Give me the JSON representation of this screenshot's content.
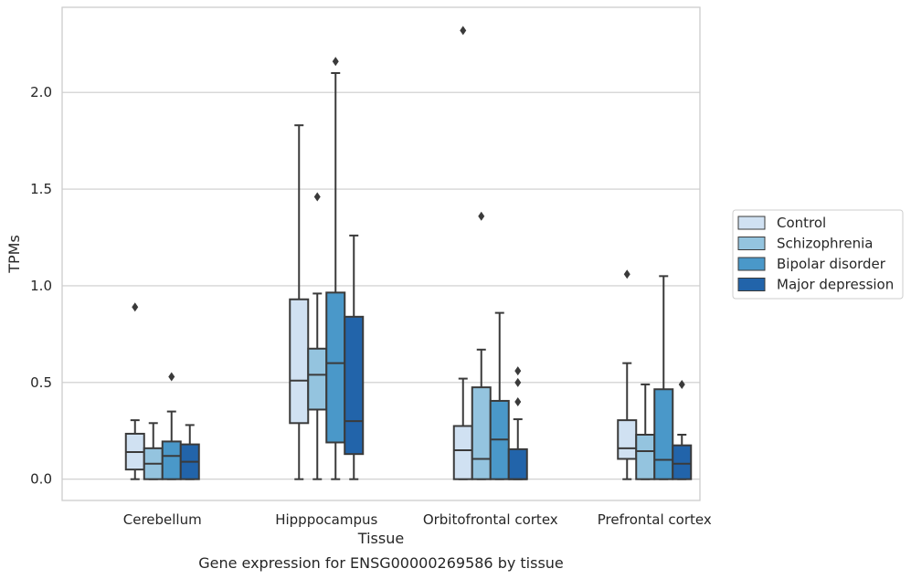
{
  "chart_data": {
    "type": "box",
    "caption": "Gene expression for ENSG00000269586 by tissue",
    "xlabel": "Tissue",
    "ylabel": "TPMs",
    "ylim": [
      -0.11,
      2.44
    ],
    "yticks": [
      0.0,
      0.5,
      1.0,
      1.5,
      2.0
    ],
    "ytick_labels": [
      "0.0",
      "0.5",
      "1.0",
      "1.5",
      "2.0"
    ],
    "grid": "horizontal",
    "legend_position": "right",
    "categories": [
      "Cerebellum",
      "Hipppocampus",
      "Orbitofrontal cortex",
      "Prefrontal cortex"
    ],
    "series": [
      {
        "name": "Control",
        "color": "#d0e1f2",
        "boxes": [
          {
            "whislo": 0.0,
            "q1": 0.05,
            "med": 0.14,
            "q3": 0.235,
            "whishi": 0.305,
            "fliers": [
              0.89
            ]
          },
          {
            "whislo": 0.0,
            "q1": 0.29,
            "med": 0.51,
            "q3": 0.93,
            "whishi": 1.83,
            "fliers": []
          },
          {
            "whislo": 0.0,
            "q1": 0.0,
            "med": 0.15,
            "q3": 0.275,
            "whishi": 0.52,
            "fliers": [
              2.32
            ]
          },
          {
            "whislo": 0.0,
            "q1": 0.105,
            "med": 0.16,
            "q3": 0.305,
            "whishi": 0.6,
            "fliers": [
              1.06
            ]
          }
        ]
      },
      {
        "name": "Schizophrenia",
        "color": "#94c4df",
        "boxes": [
          {
            "whislo": 0.0,
            "q1": 0.0,
            "med": 0.08,
            "q3": 0.16,
            "whishi": 0.29,
            "fliers": []
          },
          {
            "whislo": 0.0,
            "q1": 0.36,
            "med": 0.54,
            "q3": 0.675,
            "whishi": 0.96,
            "fliers": [
              1.46
            ]
          },
          {
            "whislo": 0.0,
            "q1": 0.0,
            "med": 0.105,
            "q3": 0.475,
            "whishi": 0.67,
            "fliers": [
              1.36
            ]
          },
          {
            "whislo": 0.0,
            "q1": 0.0,
            "med": 0.145,
            "q3": 0.23,
            "whishi": 0.49,
            "fliers": []
          }
        ]
      },
      {
        "name": "Bipolar disorder",
        "color": "#4a98c9",
        "boxes": [
          {
            "whislo": 0.0,
            "q1": 0.0,
            "med": 0.12,
            "q3": 0.195,
            "whishi": 0.35,
            "fliers": [
              0.53
            ]
          },
          {
            "whislo": 0.0,
            "q1": 0.19,
            "med": 0.6,
            "q3": 0.965,
            "whishi": 2.1,
            "fliers": [
              2.16
            ]
          },
          {
            "whislo": 0.0,
            "q1": 0.0,
            "med": 0.205,
            "q3": 0.405,
            "whishi": 0.86,
            "fliers": []
          },
          {
            "whislo": 0.0,
            "q1": 0.0,
            "med": 0.1,
            "q3": 0.465,
            "whishi": 1.05,
            "fliers": []
          }
        ]
      },
      {
        "name": "Major depression",
        "color": "#2264aa",
        "boxes": [
          {
            "whislo": 0.0,
            "q1": 0.0,
            "med": 0.09,
            "q3": 0.18,
            "whishi": 0.28,
            "fliers": []
          },
          {
            "whislo": 0.0,
            "q1": 0.13,
            "med": 0.3,
            "q3": 0.84,
            "whishi": 1.26,
            "fliers": []
          },
          {
            "whislo": 0.0,
            "q1": 0.0,
            "med": 0.0,
            "q3": 0.155,
            "whishi": 0.31,
            "fliers": [
              0.4,
              0.5,
              0.56
            ]
          },
          {
            "whislo": 0.0,
            "q1": 0.0,
            "med": 0.08,
            "q3": 0.175,
            "whishi": 0.23,
            "fliers": [
              0.49
            ]
          }
        ]
      }
    ],
    "edge_color": "#3a3a3a",
    "grid_color": "#cccccc",
    "frame_color": "#cccccc"
  }
}
